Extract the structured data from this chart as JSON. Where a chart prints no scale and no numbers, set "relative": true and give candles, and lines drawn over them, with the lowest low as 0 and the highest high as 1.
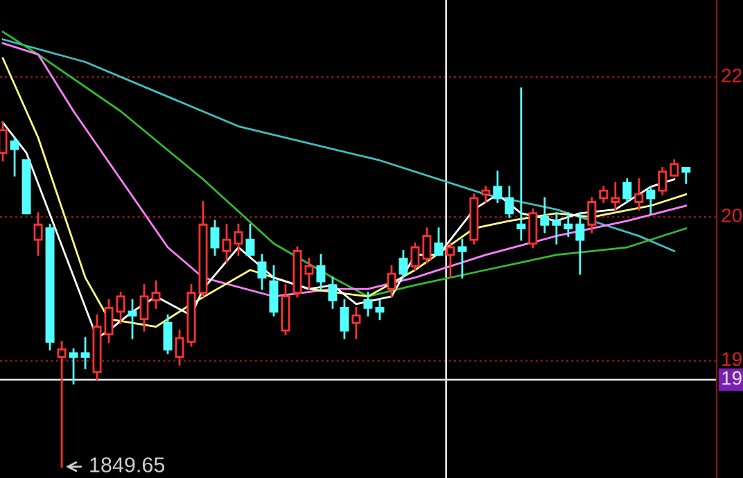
{
  "chart_data": {
    "type": "candlestick",
    "relative": true,
    "categories": [
      null,
      null,
      null,
      null,
      null,
      null,
      null,
      null,
      null,
      null,
      null,
      null,
      null,
      null,
      null,
      null,
      null,
      null,
      null,
      null,
      null,
      null,
      null,
      null,
      null,
      null,
      null,
      null,
      null,
      null,
      null,
      null,
      null,
      null,
      null,
      null,
      null,
      null,
      null,
      null,
      null,
      null,
      null,
      null,
      null,
      null,
      null,
      null,
      null,
      null,
      null,
      null,
      null,
      null,
      null,
      null,
      null,
      null,
      null
    ],
    "ohlc": [
      [
        0.83,
        0.91,
        0.81,
        0.89
      ],
      [
        0.86,
        0.87,
        0.77,
        0.84
      ],
      [
        0.81,
        0.81,
        0.67,
        0.67
      ],
      [
        0.6,
        0.67,
        0.56,
        0.64
      ],
      [
        0.63,
        0.64,
        0.31,
        0.33
      ],
      [
        0.29,
        0.33,
        0,
        0.31
      ],
      [
        0.3,
        0.31,
        0.22,
        0.29
      ],
      [
        0.3,
        0.34,
        0.26,
        0.29
      ],
      [
        0.25,
        0.4,
        0.23,
        0.37
      ],
      [
        0.35,
        0.44,
        0.33,
        0.42
      ],
      [
        0.41,
        0.46,
        0.38,
        0.45
      ],
      [
        0.41,
        0.44,
        0.34,
        0.4
      ],
      [
        0.39,
        0.48,
        0.36,
        0.45
      ],
      [
        0.44,
        0.49,
        0.42,
        0.46
      ],
      [
        0.38,
        0.4,
        0.3,
        0.31
      ],
      [
        0.29,
        0.36,
        0.27,
        0.34
      ],
      [
        0.33,
        0.48,
        0.32,
        0.46
      ],
      [
        0.46,
        0.7,
        0.45,
        0.64
      ],
      [
        0.63,
        0.65,
        0.56,
        0.58
      ],
      [
        0.57,
        0.64,
        0.54,
        0.6
      ],
      [
        0.59,
        0.64,
        0.56,
        0.62
      ],
      [
        0.6,
        0.64,
        0.56,
        0.56
      ],
      [
        0.54,
        0.56,
        0.47,
        0.5
      ],
      [
        0.49,
        0.53,
        0.4,
        0.41
      ],
      [
        0.36,
        0.48,
        0.35,
        0.45
      ],
      [
        0.46,
        0.58,
        0.45,
        0.57
      ],
      [
        0.51,
        0.55,
        0.47,
        0.53
      ],
      [
        0.53,
        0.56,
        0.47,
        0.49
      ],
      [
        0.48,
        0.5,
        0.42,
        0.44
      ],
      [
        0.42,
        0.44,
        0.34,
        0.36
      ],
      [
        0.38,
        0.42,
        0.34,
        0.4
      ],
      [
        0.44,
        0.46,
        0.4,
        0.42
      ],
      [
        0.42,
        0.44,
        0.39,
        0.41
      ],
      [
        0.47,
        0.53,
        0.45,
        0.51
      ],
      [
        0.55,
        0.57,
        0.5,
        0.51
      ],
      [
        0.53,
        0.59,
        0.52,
        0.58
      ],
      [
        0.55,
        0.63,
        0.54,
        0.61
      ],
      [
        0.59,
        0.63,
        0.56,
        0.56
      ],
      [
        0.56,
        0.59,
        0.5,
        0.58
      ],
      [
        0.58,
        0.6,
        0.5,
        0.57
      ],
      [
        0.6,
        0.72,
        0.59,
        0.71
      ],
      [
        0.72,
        0.74,
        0.7,
        0.73
      ],
      [
        0.74,
        0.78,
        0.7,
        0.71
      ],
      [
        0.71,
        0.74,
        0.66,
        0.67
      ],
      [
        0.64,
        1,
        0.6,
        0.63
      ],
      [
        0.59,
        0.68,
        0.58,
        0.67
      ],
      [
        0.66,
        0.71,
        0.62,
        0.64
      ],
      [
        0.65,
        0.67,
        0.59,
        0.64
      ],
      [
        0.64,
        0.67,
        0.61,
        0.63
      ],
      [
        0.64,
        0.67,
        0.51,
        0.6
      ],
      [
        0.64,
        0.71,
        0.62,
        0.7
      ],
      [
        0.71,
        0.74,
        0.7,
        0.73
      ],
      [
        0.7,
        0.75,
        0.68,
        0.71
      ],
      [
        0.75,
        0.76,
        0.7,
        0.71
      ],
      [
        0.7,
        0.76,
        0.68,
        0.72
      ],
      [
        0.73,
        0.74,
        0.67,
        0.71
      ],
      [
        0.73,
        0.79,
        0.72,
        0.78
      ],
      [
        0.77,
        0.81,
        0.77,
        0.8
      ],
      [
        0.79,
        0.79,
        0.75,
        0.78
      ]
    ],
    "colors": [
      "#ff3232",
      "#54ffff",
      "#54ffff",
      "#ff3232",
      "#54ffff",
      "#ff3232",
      "#54ffff",
      "#54ffff",
      "#ff3232",
      "#ff3232",
      "#ff3232",
      "#54ffff",
      "#ff3232",
      "#ff3232",
      "#54ffff",
      "#ff3232",
      "#ff3232",
      "#ff3232",
      "#54ffff",
      "#ff3232",
      "#ff3232",
      "#54ffff",
      "#54ffff",
      "#54ffff",
      "#ff3232",
      "#ff3232",
      "#ff3232",
      "#54ffff",
      "#54ffff",
      "#54ffff",
      "#ff3232",
      "#54ffff",
      "#54ffff",
      "#ff3232",
      "#54ffff",
      "#ff3232",
      "#ff3232",
      "#54ffff",
      "#ff3232",
      "#54ffff",
      "#ff3232",
      "#ff3232",
      "#54ffff",
      "#54ffff",
      "#54ffff",
      "#ff3232",
      "#54ffff",
      "#54ffff",
      "#54ffff",
      "#54ffff",
      "#ff3232",
      "#ff3232",
      "#ff3232",
      "#54ffff",
      "#ff3232",
      "#54ffff",
      "#ff3232",
      "#ff3232",
      "#54ffff"
    ],
    "series": [
      {
        "type": "line",
        "color": "#40c0c0",
        "values": [
          1.13,
          null,
          null,
          null,
          null,
          null,
          null,
          1.07,
          null,
          null,
          null,
          null,
          null,
          null,
          null,
          null,
          null,
          null,
          null,
          null,
          0.9,
          null,
          null,
          null,
          null,
          null,
          null,
          null,
          null,
          null,
          null,
          null,
          0.81,
          null,
          null,
          null,
          null,
          null,
          null,
          null,
          null,
          0.72,
          null,
          null,
          null,
          null,
          null,
          0.68,
          null,
          null,
          0.65,
          null,
          null,
          null,
          0.61,
          null,
          null,
          0.57,
          null
        ]
      },
      {
        "type": "line",
        "color": "#33bb33",
        "values": [
          1.15,
          null,
          null,
          1.09,
          null,
          null,
          null,
          null,
          null,
          null,
          0.94,
          null,
          null,
          null,
          null,
          null,
          null,
          0.76,
          null,
          null,
          null,
          null,
          null,
          0.59,
          null,
          null,
          null,
          null,
          0.5,
          null,
          null,
          0.45,
          null,
          null,
          null,
          0.48,
          null,
          null,
          null,
          null,
          null,
          0.52,
          null,
          null,
          null,
          null,
          null,
          0.56,
          null,
          null,
          null,
          null,
          null,
          0.58,
          null,
          null,
          null,
          null,
          0.63
        ]
      },
      {
        "type": "line",
        "color": "#ff80ff",
        "values": [
          1.12,
          null,
          null,
          1.09,
          null,
          null,
          0.94,
          null,
          null,
          null,
          0.76,
          null,
          null,
          null,
          0.58,
          null,
          null,
          0.5,
          null,
          null,
          null,
          null,
          null,
          0.45,
          null,
          null,
          null,
          null,
          0.47,
          null,
          null,
          0.47,
          null,
          null,
          null,
          0.5,
          null,
          null,
          null,
          null,
          null,
          0.56,
          null,
          null,
          null,
          null,
          null,
          0.61,
          null,
          null,
          null,
          null,
          null,
          0.65,
          null,
          null,
          null,
          null,
          0.69
        ]
      },
      {
        "type": "line",
        "color": "#ffff80",
        "values": [
          1.08,
          null,
          null,
          0.87,
          null,
          null,
          null,
          0.5,
          null,
          0.39,
          null,
          null,
          null,
          0.37,
          null,
          null,
          0.43,
          null,
          null,
          null,
          null,
          0.52,
          null,
          null,
          null,
          null,
          0.47,
          null,
          null,
          null,
          null,
          0.45,
          null,
          null,
          null,
          0.52,
          null,
          null,
          null,
          null,
          0.63,
          null,
          null,
          0.65,
          null,
          null,
          null,
          0.67,
          null,
          null,
          0.66,
          null,
          null,
          null,
          null,
          0.69,
          null,
          null,
          0.72
        ]
      },
      {
        "type": "line",
        "color": "#ffffff",
        "values": [
          0.91,
          null,
          0.83,
          null,
          null,
          null,
          null,
          null,
          0.34,
          0.36,
          null,
          0.41,
          null,
          0.45,
          null,
          null,
          0.4,
          0.47,
          null,
          null,
          0.58,
          null,
          null,
          0.5,
          null,
          null,
          0.47,
          null,
          0.48,
          null,
          0.43,
          null,
          null,
          0.45,
          null,
          0.56,
          null,
          0.56,
          null,
          null,
          0.68,
          null,
          0.72,
          null,
          0.67,
          null,
          null,
          0.65,
          null,
          0.67,
          null,
          null,
          0.68,
          null,
          null,
          0.74,
          null,
          0.76,
          null
        ]
      }
    ],
    "ref_lines": [
      {
        "axis": "y",
        "value": 1.03,
        "color": "#8b1a1a",
        "line_style": "dotted"
      },
      {
        "axis": "y",
        "value": 0.66,
        "color": "#8b1a1a",
        "line_style": "dotted"
      },
      {
        "axis": "y",
        "value": 0.28,
        "color": "#8b1a1a",
        "line_style": "dotted"
      },
      {
        "axis": "y",
        "value": 0.23,
        "color": "#e0e0e0",
        "line_style": "solid"
      }
    ],
    "annotations": [
      "1849.65",
      "22",
      "20",
      "19",
      "19"
    ]
  }
}
